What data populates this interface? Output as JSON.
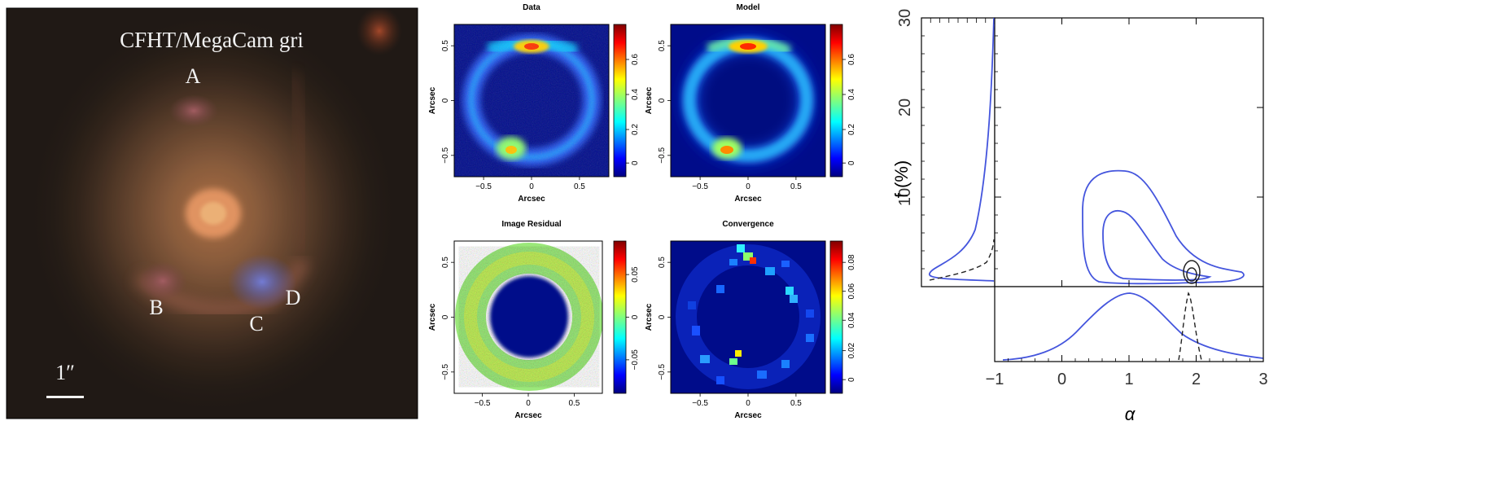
{
  "photo": {
    "title": "CFHT/MegaCam gri",
    "labels": [
      "A",
      "B",
      "C",
      "D"
    ],
    "scale_label": "1″"
  },
  "panels": {
    "data": {
      "title": "Data",
      "ticks": [
        "0",
        "0.2",
        "0.4",
        "0.6"
      ]
    },
    "model": {
      "title": "Model",
      "ticks": [
        "0",
        "0.2",
        "0.4",
        "0.6"
      ]
    },
    "residual": {
      "title": "Image Residual",
      "ticks": [
        "−0.05",
        "0",
        "0.05"
      ]
    },
    "convergence": {
      "title": "Convergence",
      "ticks": [
        "0",
        "0.02",
        "0.04",
        "0.06",
        "0.08"
      ]
    },
    "axis_label": "Arcsec",
    "axis_ticks": [
      "−0.5",
      "0",
      "0.5"
    ]
  },
  "chart_data": {
    "type": "contour",
    "xlabel": "α",
    "ylabel": "f (%)",
    "xlim": [
      -1,
      3
    ],
    "ylim": [
      0,
      30
    ],
    "x_ticks": [
      "−1",
      "0",
      "1",
      "2",
      "3"
    ],
    "y_ticks": [
      "10",
      "20",
      "30"
    ],
    "series": [
      {
        "contours": "1σ and 2σ regions",
        "peak_alpha": 1.0,
        "f_upper_2sigma": 13,
        "color": "#4455dd"
      },
      {
        "contours": "1σ and 2σ regions",
        "peak_alpha": 1.9,
        "f_upper_2sigma": 3,
        "color": "#222222"
      }
    ]
  }
}
